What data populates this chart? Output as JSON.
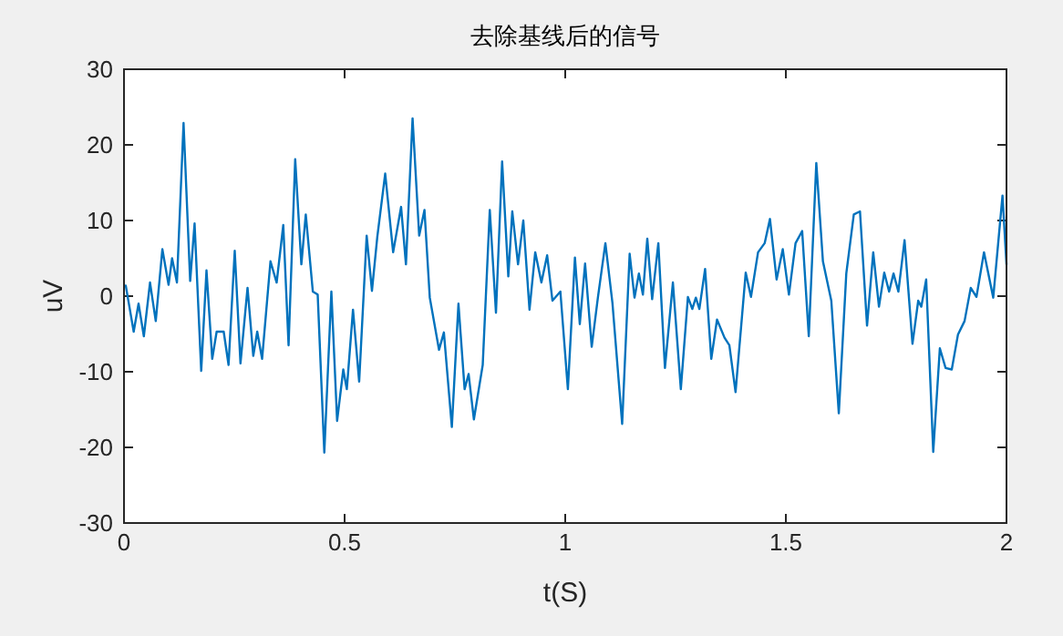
{
  "chart_data": {
    "type": "line",
    "title": "去除基线后的信号",
    "xlabel": "t(S)",
    "ylabel": "uV",
    "xlim": [
      0,
      2
    ],
    "ylim": [
      -30,
      30
    ],
    "xticks": [
      0,
      0.5,
      1,
      1.5,
      2
    ],
    "yticks": [
      -30,
      -20,
      -10,
      0,
      10,
      20,
      30
    ],
    "series": [
      {
        "color": "#0072bd",
        "x": [
          0.004,
          0.022,
          0.033,
          0.045,
          0.059,
          0.072,
          0.087,
          0.101,
          0.109,
          0.12,
          0.135,
          0.15,
          0.16,
          0.175,
          0.187,
          0.2,
          0.21,
          0.226,
          0.237,
          0.251,
          0.264,
          0.28,
          0.293,
          0.302,
          0.313,
          0.332,
          0.346,
          0.361,
          0.373,
          0.388,
          0.402,
          0.412,
          0.428,
          0.439,
          0.454,
          0.47,
          0.483,
          0.497,
          0.505,
          0.519,
          0.533,
          0.55,
          0.562,
          0.574,
          0.592,
          0.61,
          0.628,
          0.639,
          0.654,
          0.669,
          0.681,
          0.693,
          0.714,
          0.725,
          0.743,
          0.758,
          0.772,
          0.781,
          0.793,
          0.813,
          0.829,
          0.843,
          0.857,
          0.871,
          0.88,
          0.893,
          0.905,
          0.919,
          0.932,
          0.946,
          0.959,
          0.971,
          0.989,
          1.006,
          1.022,
          1.033,
          1.045,
          1.06,
          1.074,
          1.091,
          1.107,
          1.129,
          1.146,
          1.157,
          1.167,
          1.176,
          1.186,
          1.197,
          1.211,
          1.226,
          1.244,
          1.262,
          1.278,
          1.288,
          1.296,
          1.304,
          1.317,
          1.331,
          1.344,
          1.361,
          1.372,
          1.386,
          1.409,
          1.421,
          1.437,
          1.452,
          1.464,
          1.479,
          1.493,
          1.507,
          1.522,
          1.537,
          1.552,
          1.569,
          1.584,
          1.603,
          1.62,
          1.637,
          1.654,
          1.668,
          1.684,
          1.698,
          1.711,
          1.723,
          1.734,
          1.744,
          1.755,
          1.769,
          1.787,
          1.8,
          1.807,
          1.818,
          1.834,
          1.849,
          1.862,
          1.876,
          1.89,
          1.905,
          1.919,
          1.932,
          1.949,
          1.97,
          1.991,
          2.0
        ],
        "values": [
          1.4,
          -4.7,
          -1.0,
          -5.3,
          1.8,
          -3.3,
          6.2,
          1.5,
          5.0,
          1.8,
          22.9,
          2.0,
          9.6,
          -9.9,
          3.4,
          -8.3,
          -4.7,
          -4.7,
          -9.1,
          6.0,
          -8.9,
          1.1,
          -7.9,
          -4.7,
          -8.3,
          4.6,
          1.8,
          9.4,
          -6.5,
          18.1,
          4.2,
          10.8,
          0.6,
          0.2,
          -20.7,
          0.6,
          -16.5,
          -9.7,
          -12.3,
          -1.8,
          -11.3,
          8.0,
          0.7,
          7.8,
          16.2,
          5.8,
          11.8,
          4.2,
          23.5,
          8.0,
          11.4,
          -0.2,
          -7.1,
          -4.8,
          -17.3,
          -1.0,
          -12.3,
          -10.3,
          -16.3,
          -9.1,
          11.4,
          -2.2,
          17.8,
          2.6,
          11.2,
          4.2,
          10.0,
          -1.8,
          5.8,
          1.8,
          5.4,
          -0.6,
          0.6,
          -12.3,
          5.1,
          -3.7,
          4.3,
          -6.7,
          -0.2,
          7.0,
          -0.9,
          -16.9,
          5.6,
          -0.2,
          3.0,
          0.2,
          7.6,
          -0.4,
          7.0,
          -9.5,
          1.8,
          -12.3,
          -0.1,
          -1.7,
          -0.2,
          -1.7,
          3.6,
          -8.3,
          -3.1,
          -5.5,
          -6.5,
          -12.7,
          3.1,
          -0.1,
          5.8,
          7.0,
          10.2,
          2.2,
          6.2,
          0.2,
          7.0,
          8.6,
          -5.3,
          17.6,
          4.6,
          -0.6,
          -15.5,
          3.0,
          10.8,
          11.2,
          -3.9,
          5.8,
          -1.4,
          3.1,
          0.6,
          3.0,
          0.6,
          7.4,
          -6.3,
          -0.6,
          -1.4,
          2.2,
          -20.6,
          -6.9,
          -9.5,
          -9.7,
          -5.1,
          -3.3,
          1.1,
          -0.1,
          5.8,
          -0.2,
          13.3,
          4.2
        ]
      }
    ]
  }
}
